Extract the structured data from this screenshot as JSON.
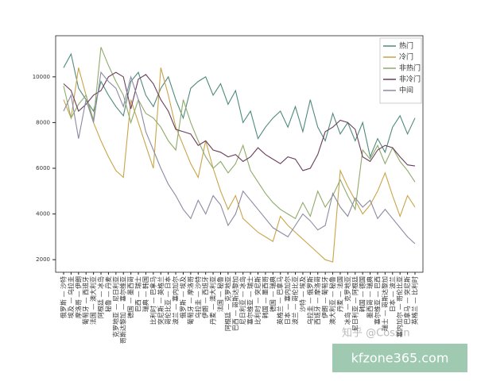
{
  "chart_data": {
    "type": "line",
    "categories": [
      "俄罗斯 — 沙特",
      "埃及 — 乌拉圭",
      "摩洛哥 — 伊朗",
      "葡萄牙 — 西班牙",
      "法国 — 澳大利亚",
      "阿根廷 — 冰岛",
      "秘鲁 — 丹麦",
      "克罗地亚 — 尼日利亚",
      "哥斯达黎加 — 塞尔维亚",
      "德国 — 墨西哥",
      "巴西 — 瑞士",
      "瑞典 — 韩国",
      "比利时 — 巴拿马",
      "突尼斯 — 英格兰",
      "哥伦比亚 — 日本",
      "波兰 — 塞内加尔",
      "俄罗斯 — 埃及",
      "葡萄牙 — 摩洛哥",
      "乌拉圭 — 沙特",
      "伊朗 — 西班牙",
      "丹麦 — 澳大利亚",
      "法国 — 秘鲁",
      "阿根廷 — 克罗地亚",
      "巴西 — 哥斯达黎加",
      "尼日利亚 — 冰岛",
      "塞尔维亚 — 瑞士",
      "比利时 — 突尼斯",
      "韩国 — 墨西哥",
      "德国 — 瑞典",
      "英格兰 — 巴拿马",
      "日本 — 塞内加尔",
      "波兰 — 哥伦比亚",
      "沙特 — 埃及",
      "乌拉圭 — 俄罗斯",
      "西班牙 — 摩洛哥",
      "伊朗 — 葡萄牙",
      "澳大利亚 — 秘鲁",
      "丹麦 — 法国",
      "冰岛 — 克罗地亚",
      "尼日利亚 — 阿根廷",
      "韩国 — 德国",
      "墨西哥 — 瑞典",
      "塞尔维亚 — 巴西",
      "瑞士 — 哥斯达黎加",
      "日本 — 波兰",
      "塞内加尔 — 哥伦比亚",
      "巴拿马 — 突尼斯",
      "英格兰 — 比利时"
    ],
    "series": [
      {
        "name": "热门",
        "color": "#4f8a7c",
        "values": [
          10400,
          11000,
          9500,
          9000,
          8500,
          9800,
          9200,
          8700,
          8300,
          9800,
          10200,
          9200,
          8700,
          9500,
          10000,
          9000,
          8200,
          9500,
          9800,
          10000,
          9200,
          9700,
          8800,
          9400,
          8000,
          8500,
          7300,
          7800,
          8200,
          8500,
          7800,
          8700,
          7600,
          9000,
          7800,
          7200,
          8400,
          7500,
          8000,
          7200,
          8000,
          6500,
          7300,
          6700,
          7800,
          8300,
          7500,
          8200
        ]
      },
      {
        "name": "冷门",
        "color": "#c9a44a",
        "values": [
          9000,
          8200,
          10400,
          9200,
          8000,
          7200,
          6500,
          5900,
          5600,
          9000,
          8000,
          7000,
          6000,
          10400,
          9200,
          7800,
          7000,
          6200,
          5600,
          7200,
          6000,
          5000,
          4200,
          4800,
          3800,
          3500,
          3200,
          3000,
          2800,
          3900,
          3500,
          3200,
          2900,
          2600,
          2300,
          2000,
          1900,
          5900,
          5200,
          4600,
          4000,
          4400,
          5000,
          5800,
          4800,
          3900,
          4800,
          4300
        ]
      },
      {
        "name": "非热门",
        "color": "#8fab6a",
        "values": [
          9600,
          8200,
          8800,
          9200,
          8100,
          11300,
          10500,
          9800,
          9200,
          8000,
          9000,
          8400,
          8200,
          7800,
          7200,
          6800,
          9000,
          8000,
          7200,
          6500,
          6000,
          6300,
          5800,
          6200,
          7000,
          5900,
          5400,
          4900,
          4500,
          4200,
          4000,
          3800,
          4500,
          3900,
          5000,
          4300,
          4800,
          5500,
          4800,
          4200,
          6800,
          6400,
          7000,
          6200,
          6900,
          6300,
          5900,
          5400
        ]
      },
      {
        "name": "非冷门",
        "color": "#6b3d5c",
        "values": [
          9700,
          9400,
          8500,
          8800,
          9200,
          9400,
          10000,
          10200,
          10000,
          8600,
          9900,
          10100,
          9700,
          9000,
          8500,
          7700,
          7600,
          7500,
          7000,
          7200,
          6800,
          6700,
          6500,
          6600,
          6300,
          6500,
          6900,
          6600,
          6400,
          6200,
          6500,
          6400,
          5900,
          6000,
          6600,
          7600,
          7800,
          8100,
          8000,
          7700,
          6500,
          6300,
          6800,
          7000,
          6900,
          6500,
          6150,
          6100
        ]
      },
      {
        "name": "中间",
        "color": "#8c8aa3",
        "values": [
          8500,
          9200,
          7300,
          9000,
          8000,
          10200,
          9800,
          9500,
          8700,
          10000,
          9000,
          7600,
          6800,
          6000,
          5300,
          4800,
          4200,
          3800,
          4600,
          4000,
          4800,
          4400,
          3500,
          4000,
          5000,
          4600,
          4200,
          3800,
          3400,
          3200,
          3000,
          3500,
          4000,
          3700,
          3300,
          3500,
          4900,
          4300,
          3900,
          4700,
          4300,
          4600,
          3800,
          4200,
          3800,
          3400,
          3000,
          2700
        ]
      }
    ],
    "ylim": [
      1450,
      11800
    ],
    "yticks": [
      2000,
      4000,
      6000,
      8000,
      10000
    ],
    "grid": false,
    "legend": "upper right",
    "annotations": [
      "知乎 @Cossin",
      "kfzone365.com"
    ]
  }
}
